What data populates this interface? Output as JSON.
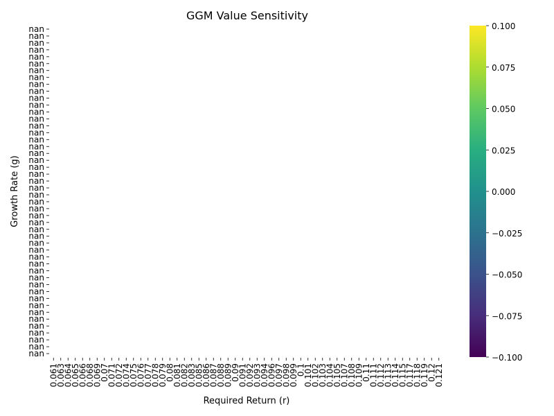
{
  "chart_data": {
    "type": "heatmap",
    "title": "GGM Value Sensitivity",
    "xlabel": "Required Return (r)",
    "ylabel": "Growth Rate (g)",
    "x_tick_labels": [
      "0.061",
      "0.063",
      "0.064",
      "0.065",
      "0.066",
      "0.068",
      "0.069",
      "0.07",
      "0.071",
      "0.072",
      "0.074",
      "0.075",
      "0.076",
      "0.077",
      "0.078",
      "0.079",
      "0.08",
      "0.081",
      "0.082",
      "0.083",
      "0.085",
      "0.086",
      "0.087",
      "0.088",
      "0.089",
      "0.09",
      "0.091",
      "0.092",
      "0.093",
      "0.094",
      "0.096",
      "0.097",
      "0.098",
      "0.099",
      "0.1",
      "0.101",
      "0.102",
      "0.103",
      "0.104",
      "0.105",
      "0.107",
      "0.108",
      "0.109",
      "0.11",
      "0.111",
      "0.112",
      "0.113",
      "0.114",
      "0.115",
      "0.117",
      "0.118",
      "0.119",
      "0.12",
      "0.121"
    ],
    "y_tick_labels": [
      "nan",
      "nan",
      "nan",
      "nan",
      "nan",
      "nan",
      "nan",
      "nan",
      "nan",
      "nan",
      "nan",
      "nan",
      "nan",
      "nan",
      "nan",
      "nan",
      "nan",
      "nan",
      "nan",
      "nan",
      "nan",
      "nan",
      "nan",
      "nan",
      "nan",
      "nan",
      "nan",
      "nan",
      "nan",
      "nan",
      "nan",
      "nan",
      "nan",
      "nan",
      "nan",
      "nan",
      "nan",
      "nan",
      "nan",
      "nan",
      "nan",
      "nan",
      "nan",
      "nan",
      "nan",
      "nan",
      "nan",
      "nan"
    ],
    "values": "all NaN (no cells drawn)",
    "colorbar": {
      "colormap": "viridis",
      "range": [
        -0.1,
        0.1
      ],
      "ticks": [
        "0.100",
        "0.075",
        "0.050",
        "0.025",
        "0.000",
        "−0.025",
        "−0.050",
        "−0.075",
        "−0.100"
      ]
    },
    "grid": false
  }
}
